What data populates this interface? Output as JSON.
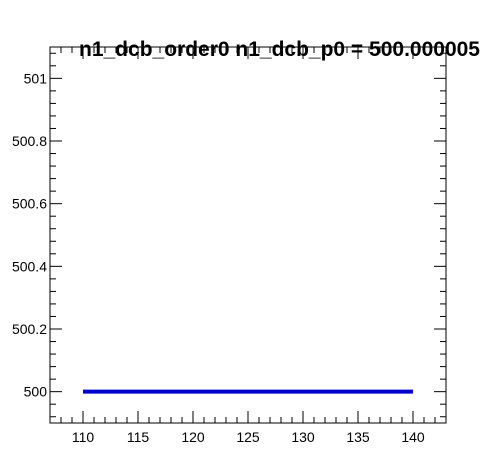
{
  "chart_data": {
    "type": "line",
    "title": "n1_dcb_order0  n1_dcb_p0 = 500.000005",
    "xlabel": "",
    "ylabel": "",
    "xlim": [
      107,
      143
    ],
    "ylim": [
      499.9,
      501.1
    ],
    "x_ticks": [
      110,
      115,
      120,
      125,
      130,
      135,
      140
    ],
    "x_tick_labels": [
      "110",
      "115",
      "120",
      "125",
      "130",
      "135",
      "140"
    ],
    "y_ticks": [
      500,
      500.2,
      500.4,
      500.6,
      500.8,
      501
    ],
    "y_tick_labels": [
      "500",
      "500.2",
      "500.4",
      "500.6",
      "500.8",
      "501"
    ],
    "x_minor_step": 1,
    "y_minor_step": 0.04,
    "grid": false,
    "legend": "none",
    "series": [
      {
        "color": "#0000cc",
        "x": [
          110,
          140
        ],
        "y": [
          500.000005,
          500.000005
        ]
      }
    ]
  }
}
